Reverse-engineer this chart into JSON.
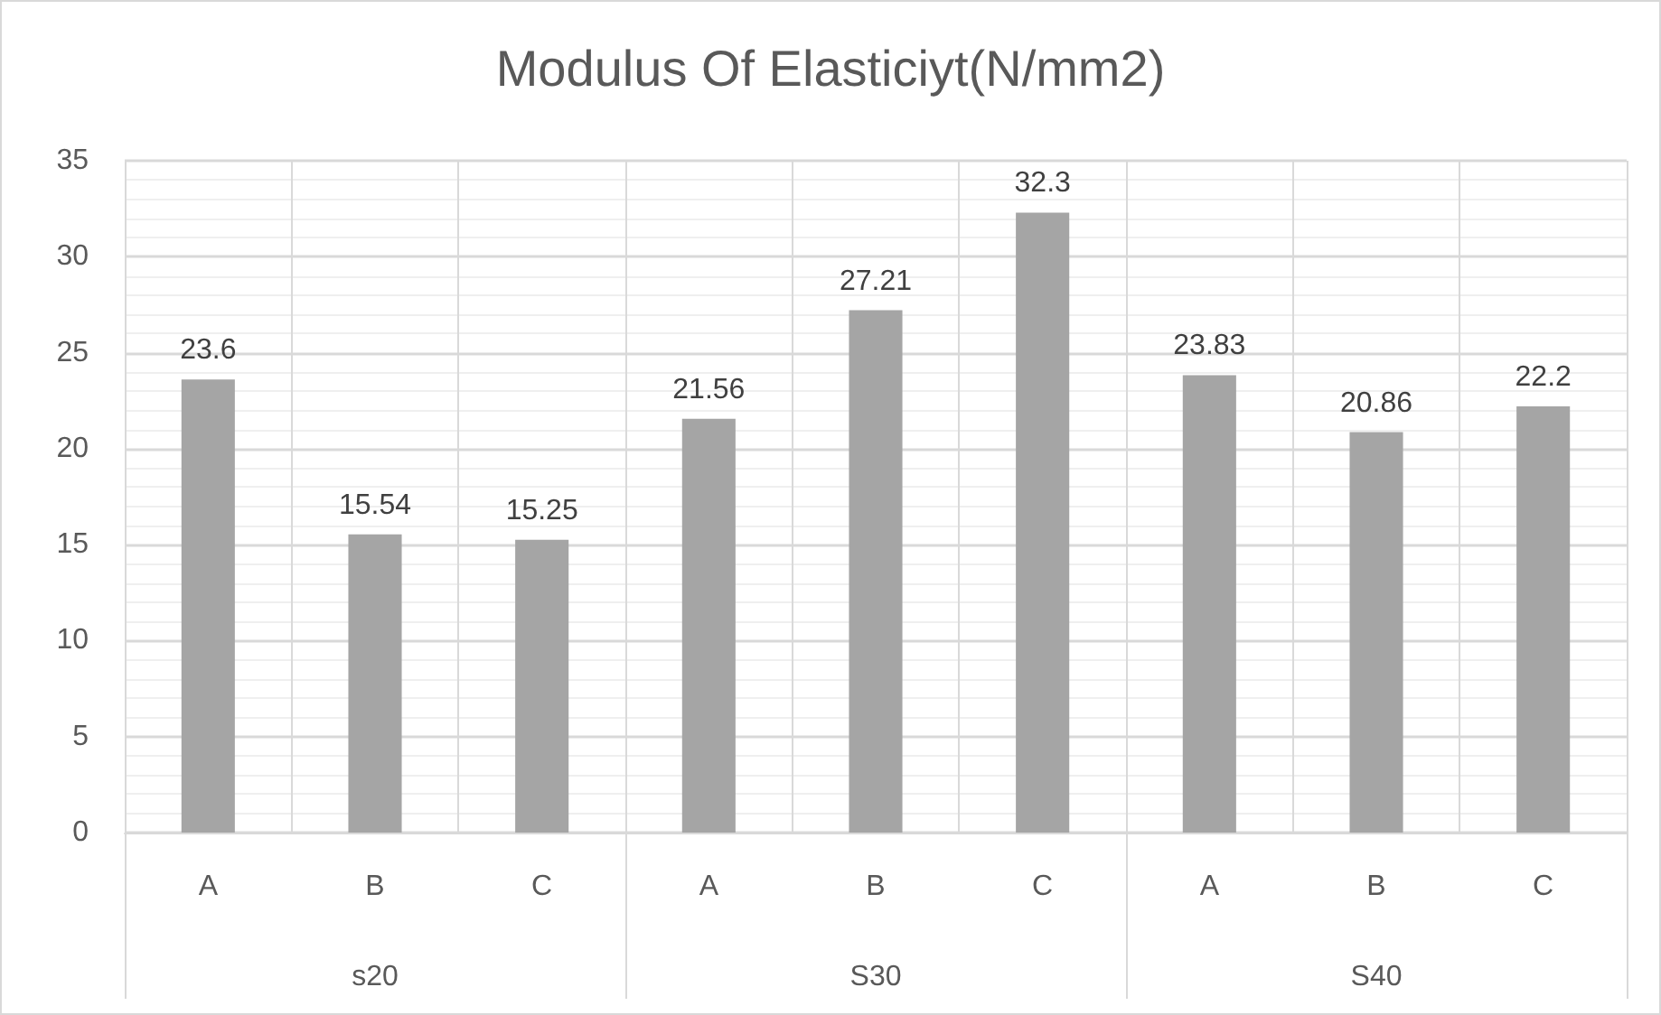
{
  "chart_data": {
    "type": "bar",
    "title": "Modulus Of Elasticiyt(N/mm2)",
    "categories": [
      "A",
      "B",
      "C",
      "A",
      "B",
      "C",
      "A",
      "B",
      "C"
    ],
    "annotations": [
      "s20",
      "S30",
      "S40"
    ],
    "values": [
      23.6,
      15.54,
      15.25,
      21.56,
      27.21,
      32.3,
      23.83,
      20.86,
      22.2
    ],
    "color": "#a5a5a5",
    "data_labels": true,
    "ylim": [
      0,
      35
    ],
    "yticks": [
      0,
      5,
      10,
      15,
      20,
      25,
      30,
      35
    ],
    "grid": true
  }
}
